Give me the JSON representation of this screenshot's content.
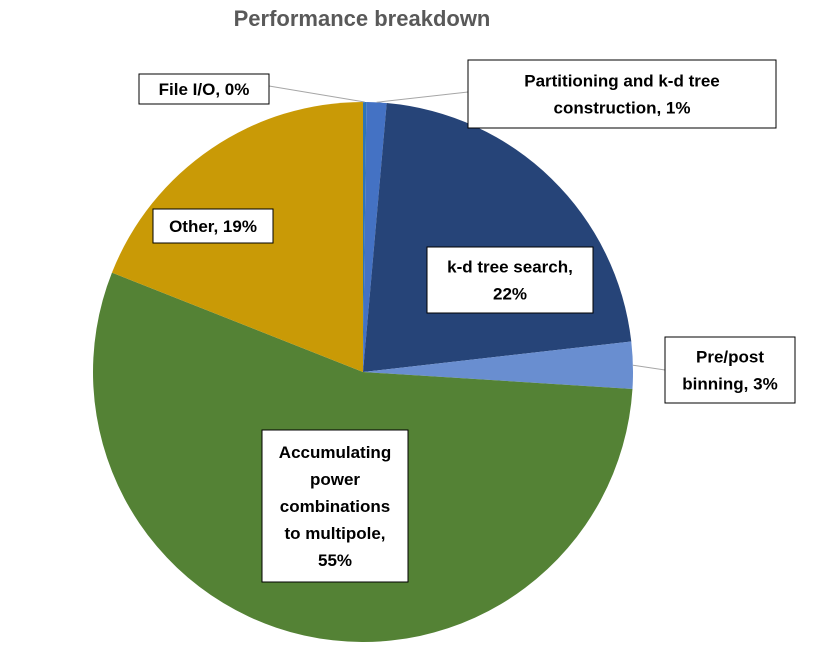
{
  "chart_data": {
    "type": "pie",
    "title": "Performance breakdown",
    "slices": [
      {
        "name": "File I/O",
        "value": 0,
        "color": "#2e75b6",
        "label": [
          "File I/O, 0%"
        ]
      },
      {
        "name": "Partitioning and k-d tree construction",
        "value": 1,
        "color": "#4472c4",
        "label": [
          "Partitioning and k-d tree",
          "construction, 1%"
        ]
      },
      {
        "name": "k-d tree search",
        "value": 22,
        "color": "#264478",
        "label": [
          "k-d tree search,",
          "22%"
        ]
      },
      {
        "name": "Pre/post binning",
        "value": 3,
        "color": "#698ed0",
        "label": [
          "Pre/post",
          "binning, 3%"
        ]
      },
      {
        "name": "Accumulating power combinations to multipole",
        "value": 55,
        "color": "#548235",
        "label": [
          "Accumulating",
          "power",
          "combinations",
          "to multipole,",
          "55%"
        ]
      },
      {
        "name": "Other",
        "value": 19,
        "color": "#c99a06",
        "label": [
          "Other, 19%"
        ]
      }
    ]
  }
}
